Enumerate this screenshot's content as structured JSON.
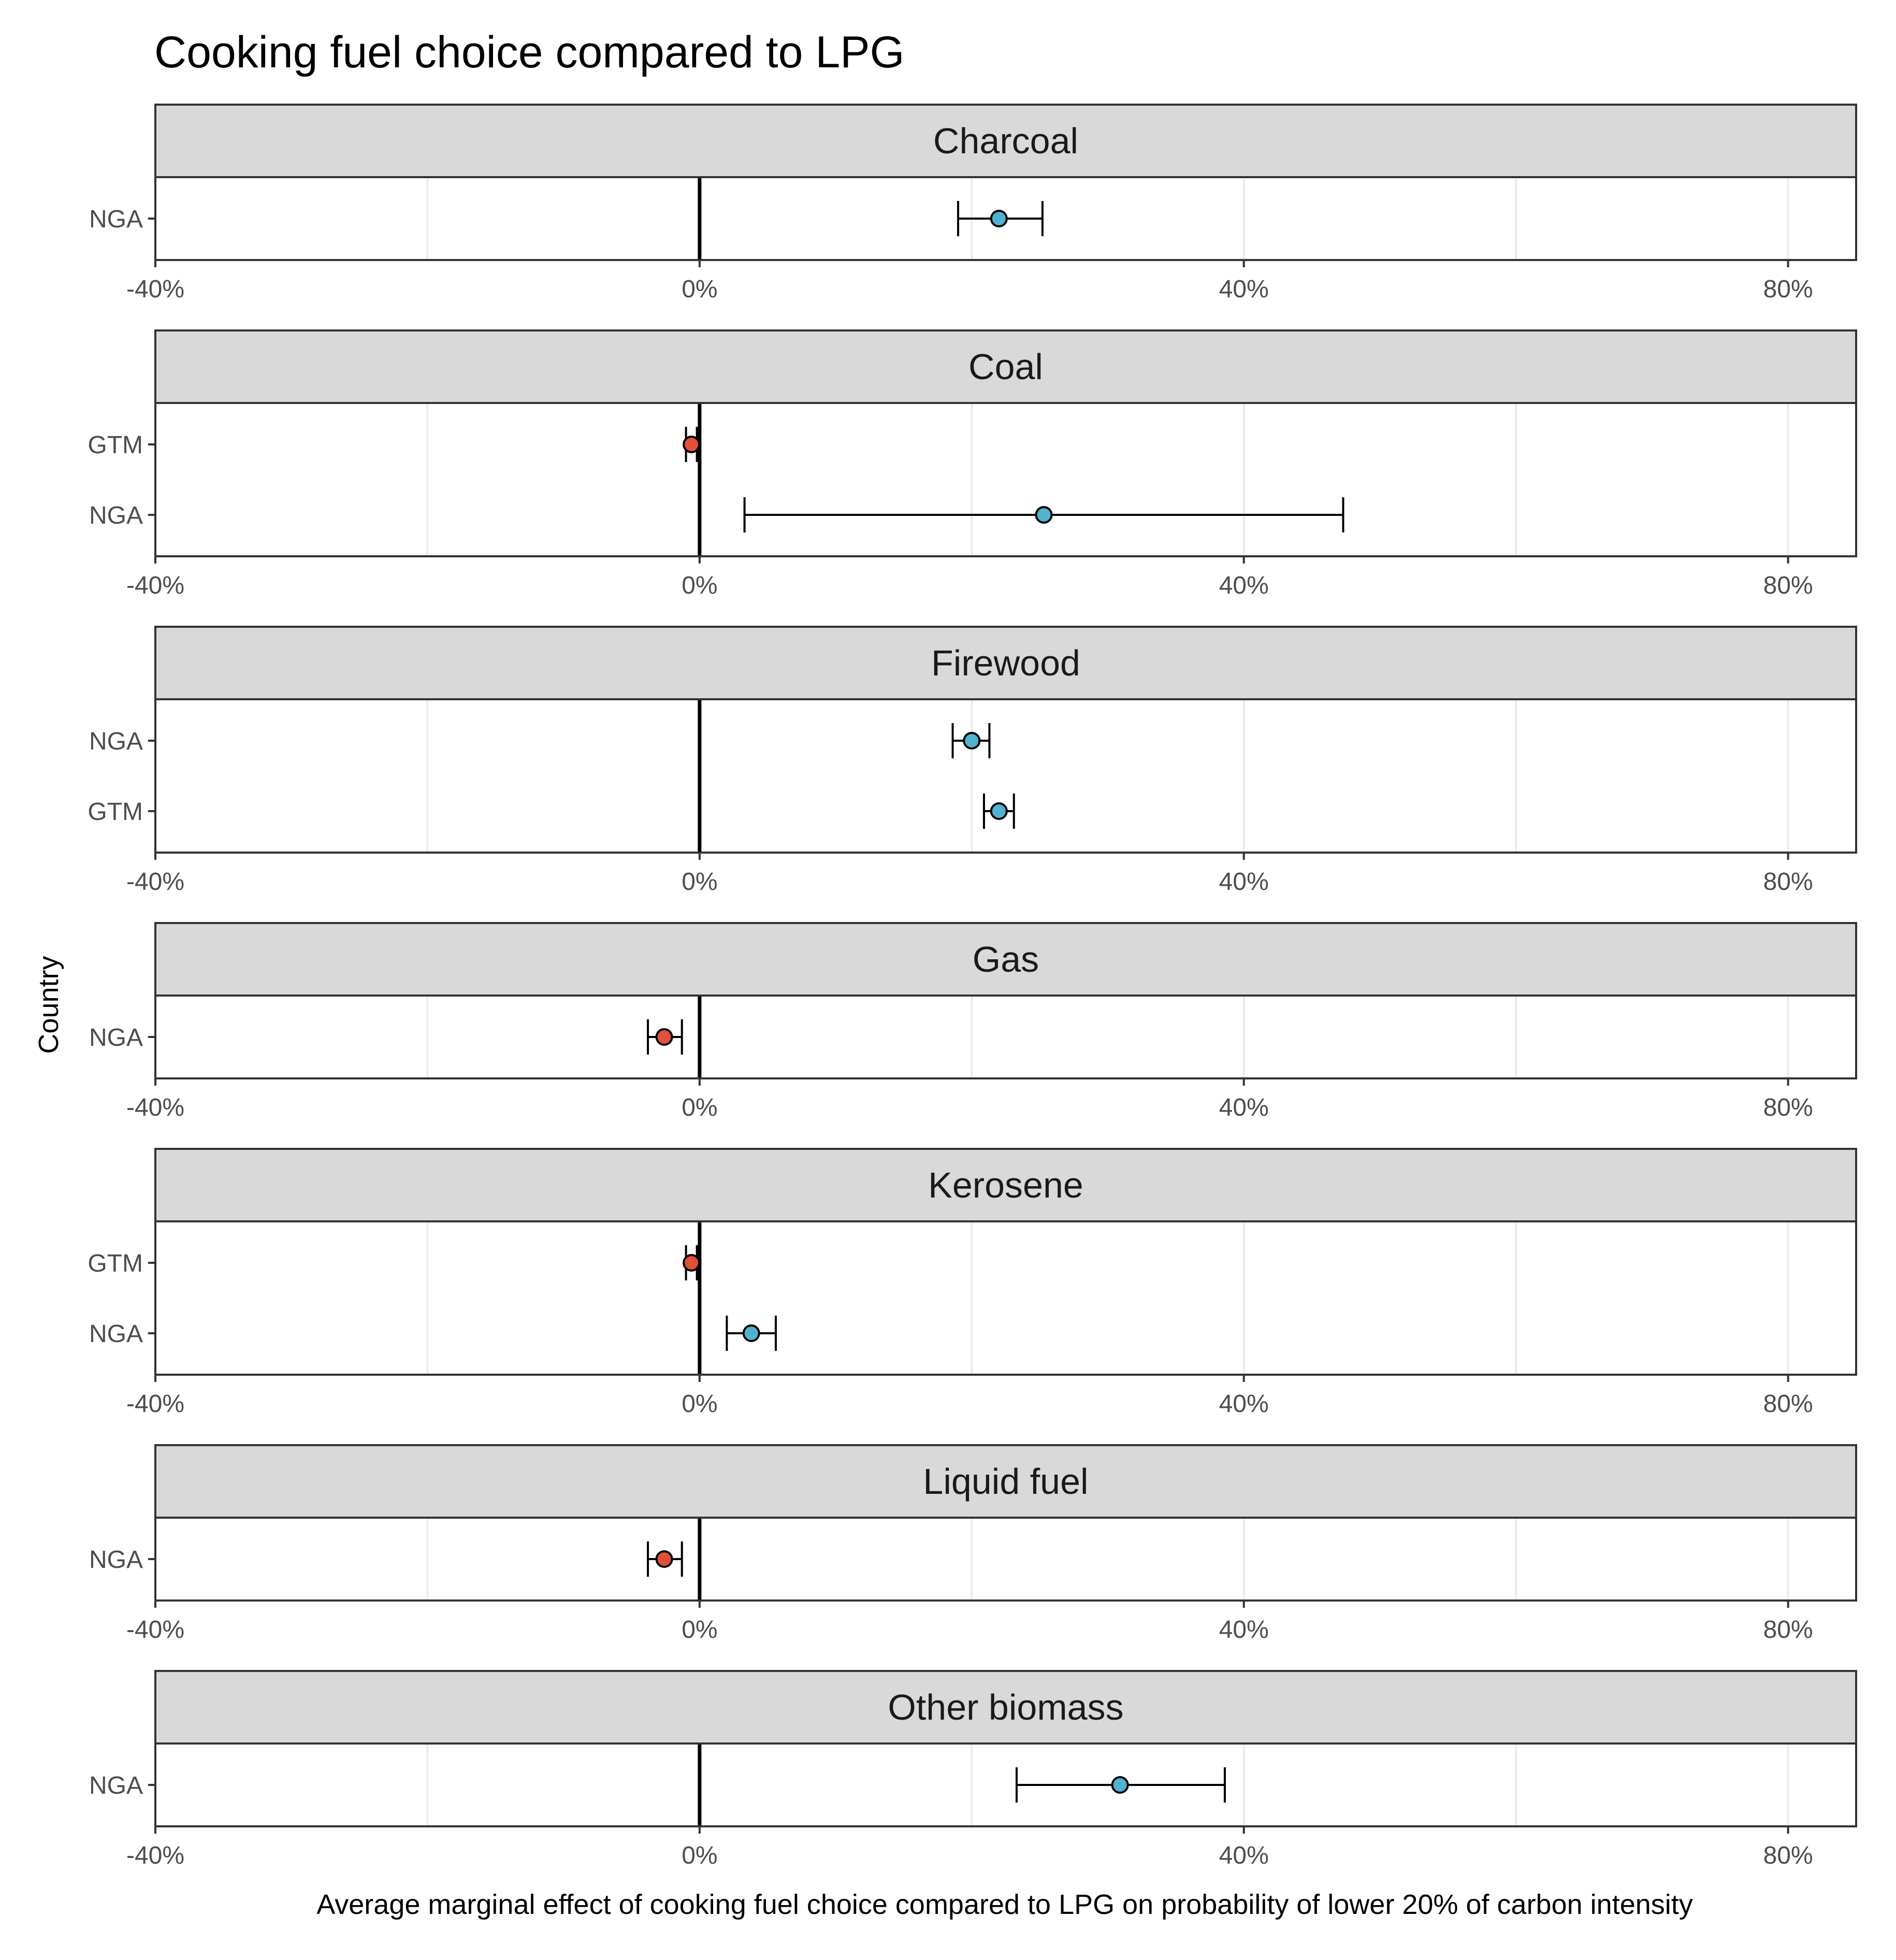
{
  "chart_data": {
    "type": "scatter",
    "title": "Cooking fuel choice compared to LPG",
    "xlabel": "Average marginal effect of cooking fuel choice compared to LPG on probability of lower 20% of carbon intensity",
    "ylabel": "Country",
    "xlim": [
      -40,
      85
    ],
    "x_ticks": [
      -40,
      0,
      40,
      80
    ],
    "x_tick_labels": [
      "-40%",
      "0%",
      "40%",
      "80%"
    ],
    "reference_line": 0,
    "grid": true,
    "legend": "none",
    "colors": {
      "positive": "#4fb3d0",
      "negative": "#e0503a"
    },
    "panels": [
      {
        "label": "Charcoal",
        "points": [
          {
            "country": "NGA",
            "estimate": 22.0,
            "low": 19.0,
            "high": 25.2,
            "sign": "positive"
          }
        ]
      },
      {
        "label": "Coal",
        "points": [
          {
            "country": "GTM",
            "estimate": -0.6,
            "low": -1.0,
            "high": -0.2,
            "sign": "negative"
          },
          {
            "country": "NGA",
            "estimate": 25.3,
            "low": 3.3,
            "high": 47.3,
            "sign": "positive"
          }
        ]
      },
      {
        "label": "Firewood",
        "points": [
          {
            "country": "NGA",
            "estimate": 20.0,
            "low": 18.6,
            "high": 21.3,
            "sign": "positive"
          },
          {
            "country": "GTM",
            "estimate": 22.0,
            "low": 20.9,
            "high": 23.1,
            "sign": "positive"
          }
        ]
      },
      {
        "label": "Gas",
        "points": [
          {
            "country": "NGA",
            "estimate": -2.6,
            "low": -3.8,
            "high": -1.3,
            "sign": "negative"
          }
        ]
      },
      {
        "label": "Kerosene",
        "points": [
          {
            "country": "GTM",
            "estimate": -0.6,
            "low": -1.0,
            "high": -0.2,
            "sign": "negative"
          },
          {
            "country": "NGA",
            "estimate": 3.8,
            "low": 2.0,
            "high": 5.6,
            "sign": "positive"
          }
        ]
      },
      {
        "label": "Liquid fuel",
        "points": [
          {
            "country": "NGA",
            "estimate": -2.6,
            "low": -3.8,
            "high": -1.3,
            "sign": "negative"
          }
        ]
      },
      {
        "label": "Other biomass",
        "points": [
          {
            "country": "NGA",
            "estimate": 30.9,
            "low": 23.3,
            "high": 38.6,
            "sign": "positive"
          }
        ]
      }
    ]
  }
}
